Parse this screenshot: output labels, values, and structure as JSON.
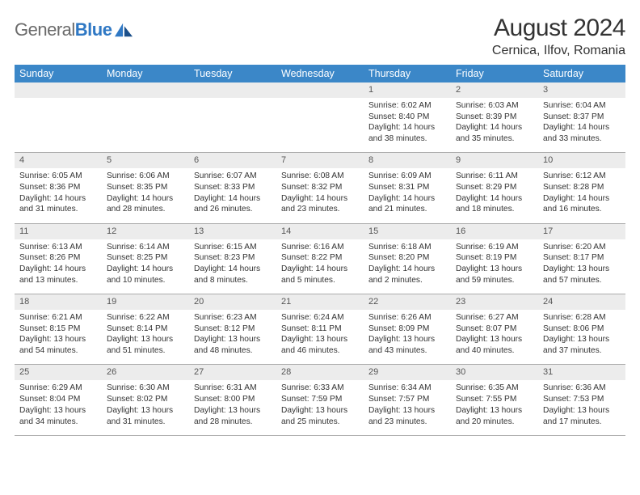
{
  "logo": {
    "word1": "General",
    "word2": "Blue"
  },
  "title": {
    "month": "August 2024",
    "location": "Cernica, Ilfov, Romania"
  },
  "colors": {
    "header_bg": "#3b87c8",
    "header_fg": "#ffffff",
    "daynum_bg": "#ececec",
    "daynum_fg": "#555555",
    "body_fg": "#333333",
    "rule": "#adadad",
    "logo_gray": "#6b6b6b",
    "logo_blue": "#2f78c4"
  },
  "fonts": {
    "title_month_pt": 30,
    "title_location_pt": 16,
    "weekday_pt": 12.5,
    "daynum_pt": 11,
    "cell_pt": 10.2
  },
  "weekdays": [
    "Sunday",
    "Monday",
    "Tuesday",
    "Wednesday",
    "Thursday",
    "Friday",
    "Saturday"
  ],
  "weeks": [
    {
      "nums": [
        "",
        "",
        "",
        "",
        "1",
        "2",
        "3"
      ],
      "cells": [
        {},
        {},
        {},
        {},
        {
          "sr": "Sunrise: 6:02 AM",
          "ss": "Sunset: 8:40 PM",
          "d1": "Daylight: 14 hours",
          "d2": "and 38 minutes."
        },
        {
          "sr": "Sunrise: 6:03 AM",
          "ss": "Sunset: 8:39 PM",
          "d1": "Daylight: 14 hours",
          "d2": "and 35 minutes."
        },
        {
          "sr": "Sunrise: 6:04 AM",
          "ss": "Sunset: 8:37 PM",
          "d1": "Daylight: 14 hours",
          "d2": "and 33 minutes."
        }
      ]
    },
    {
      "nums": [
        "4",
        "5",
        "6",
        "7",
        "8",
        "9",
        "10"
      ],
      "cells": [
        {
          "sr": "Sunrise: 6:05 AM",
          "ss": "Sunset: 8:36 PM",
          "d1": "Daylight: 14 hours",
          "d2": "and 31 minutes."
        },
        {
          "sr": "Sunrise: 6:06 AM",
          "ss": "Sunset: 8:35 PM",
          "d1": "Daylight: 14 hours",
          "d2": "and 28 minutes."
        },
        {
          "sr": "Sunrise: 6:07 AM",
          "ss": "Sunset: 8:33 PM",
          "d1": "Daylight: 14 hours",
          "d2": "and 26 minutes."
        },
        {
          "sr": "Sunrise: 6:08 AM",
          "ss": "Sunset: 8:32 PM",
          "d1": "Daylight: 14 hours",
          "d2": "and 23 minutes."
        },
        {
          "sr": "Sunrise: 6:09 AM",
          "ss": "Sunset: 8:31 PM",
          "d1": "Daylight: 14 hours",
          "d2": "and 21 minutes."
        },
        {
          "sr": "Sunrise: 6:11 AM",
          "ss": "Sunset: 8:29 PM",
          "d1": "Daylight: 14 hours",
          "d2": "and 18 minutes."
        },
        {
          "sr": "Sunrise: 6:12 AM",
          "ss": "Sunset: 8:28 PM",
          "d1": "Daylight: 14 hours",
          "d2": "and 16 minutes."
        }
      ]
    },
    {
      "nums": [
        "11",
        "12",
        "13",
        "14",
        "15",
        "16",
        "17"
      ],
      "cells": [
        {
          "sr": "Sunrise: 6:13 AM",
          "ss": "Sunset: 8:26 PM",
          "d1": "Daylight: 14 hours",
          "d2": "and 13 minutes."
        },
        {
          "sr": "Sunrise: 6:14 AM",
          "ss": "Sunset: 8:25 PM",
          "d1": "Daylight: 14 hours",
          "d2": "and 10 minutes."
        },
        {
          "sr": "Sunrise: 6:15 AM",
          "ss": "Sunset: 8:23 PM",
          "d1": "Daylight: 14 hours",
          "d2": "and 8 minutes."
        },
        {
          "sr": "Sunrise: 6:16 AM",
          "ss": "Sunset: 8:22 PM",
          "d1": "Daylight: 14 hours",
          "d2": "and 5 minutes."
        },
        {
          "sr": "Sunrise: 6:18 AM",
          "ss": "Sunset: 8:20 PM",
          "d1": "Daylight: 14 hours",
          "d2": "and 2 minutes."
        },
        {
          "sr": "Sunrise: 6:19 AM",
          "ss": "Sunset: 8:19 PM",
          "d1": "Daylight: 13 hours",
          "d2": "and 59 minutes."
        },
        {
          "sr": "Sunrise: 6:20 AM",
          "ss": "Sunset: 8:17 PM",
          "d1": "Daylight: 13 hours",
          "d2": "and 57 minutes."
        }
      ]
    },
    {
      "nums": [
        "18",
        "19",
        "20",
        "21",
        "22",
        "23",
        "24"
      ],
      "cells": [
        {
          "sr": "Sunrise: 6:21 AM",
          "ss": "Sunset: 8:15 PM",
          "d1": "Daylight: 13 hours",
          "d2": "and 54 minutes."
        },
        {
          "sr": "Sunrise: 6:22 AM",
          "ss": "Sunset: 8:14 PM",
          "d1": "Daylight: 13 hours",
          "d2": "and 51 minutes."
        },
        {
          "sr": "Sunrise: 6:23 AM",
          "ss": "Sunset: 8:12 PM",
          "d1": "Daylight: 13 hours",
          "d2": "and 48 minutes."
        },
        {
          "sr": "Sunrise: 6:24 AM",
          "ss": "Sunset: 8:11 PM",
          "d1": "Daylight: 13 hours",
          "d2": "and 46 minutes."
        },
        {
          "sr": "Sunrise: 6:26 AM",
          "ss": "Sunset: 8:09 PM",
          "d1": "Daylight: 13 hours",
          "d2": "and 43 minutes."
        },
        {
          "sr": "Sunrise: 6:27 AM",
          "ss": "Sunset: 8:07 PM",
          "d1": "Daylight: 13 hours",
          "d2": "and 40 minutes."
        },
        {
          "sr": "Sunrise: 6:28 AM",
          "ss": "Sunset: 8:06 PM",
          "d1": "Daylight: 13 hours",
          "d2": "and 37 minutes."
        }
      ]
    },
    {
      "nums": [
        "25",
        "26",
        "27",
        "28",
        "29",
        "30",
        "31"
      ],
      "cells": [
        {
          "sr": "Sunrise: 6:29 AM",
          "ss": "Sunset: 8:04 PM",
          "d1": "Daylight: 13 hours",
          "d2": "and 34 minutes."
        },
        {
          "sr": "Sunrise: 6:30 AM",
          "ss": "Sunset: 8:02 PM",
          "d1": "Daylight: 13 hours",
          "d2": "and 31 minutes."
        },
        {
          "sr": "Sunrise: 6:31 AM",
          "ss": "Sunset: 8:00 PM",
          "d1": "Daylight: 13 hours",
          "d2": "and 28 minutes."
        },
        {
          "sr": "Sunrise: 6:33 AM",
          "ss": "Sunset: 7:59 PM",
          "d1": "Daylight: 13 hours",
          "d2": "and 25 minutes."
        },
        {
          "sr": "Sunrise: 6:34 AM",
          "ss": "Sunset: 7:57 PM",
          "d1": "Daylight: 13 hours",
          "d2": "and 23 minutes."
        },
        {
          "sr": "Sunrise: 6:35 AM",
          "ss": "Sunset: 7:55 PM",
          "d1": "Daylight: 13 hours",
          "d2": "and 20 minutes."
        },
        {
          "sr": "Sunrise: 6:36 AM",
          "ss": "Sunset: 7:53 PM",
          "d1": "Daylight: 13 hours",
          "d2": "and 17 minutes."
        }
      ]
    }
  ]
}
